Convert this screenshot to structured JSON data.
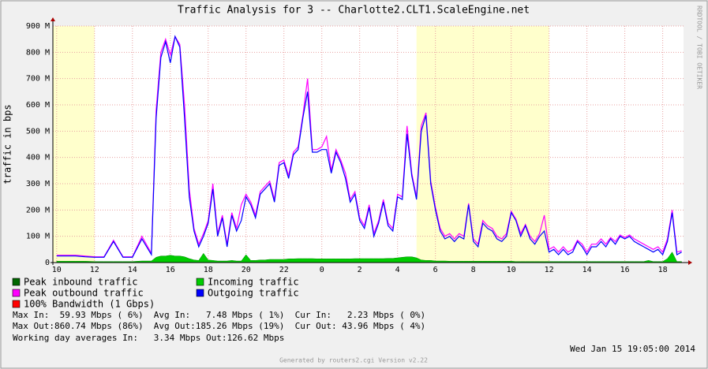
{
  "chart_data": {
    "type": "line",
    "title": "Traffic Analysis for 3 -- Charlotte2.CLT1.ScaleEngine.net",
    "y_label": "traffic in bps",
    "side_text": "RRDTOOL / TOBI OETIKER",
    "xlim": [
      9.8,
      43.1
    ],
    "ylim": [
      0,
      900
    ],
    "grid": true,
    "working_hours": [
      [
        9.8,
        12
      ],
      [
        29,
        36
      ]
    ],
    "xticks": [
      10,
      12,
      14,
      16,
      18,
      20,
      22,
      {
        "value": 24,
        "label": "0"
      },
      {
        "value": 26,
        "label": "2"
      },
      {
        "value": 28,
        "label": "4"
      },
      {
        "value": 30,
        "label": "6"
      },
      {
        "value": 32,
        "label": "8"
      },
      {
        "value": 34,
        "label": "10"
      },
      {
        "value": 36,
        "label": "12"
      },
      {
        "value": 38,
        "label": "14"
      },
      {
        "value": 40,
        "label": "16"
      },
      {
        "value": 42,
        "label": "18"
      }
    ],
    "yticks": [
      0,
      {
        "value": 100,
        "label": "100 M"
      },
      {
        "value": 200,
        "label": "200 M"
      },
      {
        "value": 300,
        "label": "300 M"
      },
      {
        "value": 400,
        "label": "400 M"
      },
      {
        "value": 500,
        "label": "500 M"
      },
      {
        "value": 600,
        "label": "600 M"
      },
      {
        "value": 700,
        "label": "700 M"
      },
      {
        "value": 800,
        "label": "800 M"
      },
      {
        "value": 900,
        "label": "900 M"
      }
    ],
    "x": [
      10,
      10.5,
      11,
      11.5,
      12,
      12.5,
      13,
      13.5,
      14,
      14.5,
      15,
      15.25,
      15.5,
      15.75,
      16,
      16.25,
      16.5,
      16.75,
      17,
      17.25,
      17.5,
      17.75,
      18,
      18.25,
      18.5,
      18.75,
      19,
      19.25,
      19.5,
      19.75,
      20,
      20.25,
      20.5,
      20.75,
      21,
      21.25,
      21.5,
      21.75,
      22,
      22.25,
      22.5,
      22.75,
      23,
      23.25,
      23.5,
      23.75,
      24,
      24.25,
      24.5,
      24.75,
      25,
      25.25,
      25.5,
      25.75,
      26,
      26.25,
      26.5,
      26.75,
      27,
      27.25,
      27.5,
      27.75,
      28,
      28.25,
      28.5,
      28.75,
      29,
      29.25,
      29.5,
      29.75,
      30,
      30.25,
      30.5,
      30.75,
      31,
      31.25,
      31.5,
      31.75,
      32,
      32.25,
      32.5,
      32.75,
      33,
      33.25,
      33.5,
      33.75,
      34,
      34.25,
      34.5,
      34.75,
      35,
      35.25,
      35.5,
      35.75,
      36,
      36.25,
      36.5,
      36.75,
      37,
      37.25,
      37.5,
      37.75,
      38,
      38.25,
      38.5,
      38.75,
      39,
      39.25,
      39.5,
      39.75,
      40,
      40.25,
      40.5,
      40.75,
      41,
      41.25,
      41.5,
      41.75,
      42,
      42.25,
      42.5,
      42.75,
      43
    ],
    "series": [
      {
        "name": "Incoming traffic",
        "color": "#00cc00",
        "style": "area",
        "values": [
          5,
          5,
          5,
          5,
          4,
          4,
          4,
          4,
          4,
          6,
          6,
          20,
          25,
          25,
          28,
          25,
          25,
          22,
          15,
          10,
          8,
          35,
          10,
          8,
          6,
          6,
          6,
          8,
          6,
          6,
          30,
          8,
          8,
          10,
          10,
          12,
          12,
          12,
          12,
          14,
          14,
          15,
          15,
          15,
          15,
          14,
          14,
          14,
          14,
          14,
          14,
          14,
          14,
          15,
          15,
          15,
          15,
          15,
          15,
          15,
          16,
          16,
          18,
          20,
          22,
          22,
          18,
          10,
          8,
          8,
          6,
          6,
          6,
          5,
          5,
          5,
          5,
          5,
          5,
          5,
          5,
          5,
          5,
          5,
          5,
          5,
          5,
          4,
          4,
          4,
          4,
          4,
          4,
          4,
          4,
          4,
          4,
          4,
          4,
          4,
          4,
          4,
          4,
          4,
          4,
          4,
          4,
          4,
          4,
          4,
          4,
          4,
          4,
          4,
          4,
          8,
          4,
          4,
          4,
          15,
          40,
          4,
          4
        ]
      },
      {
        "name": "Peak outbound traffic",
        "color": "#ff00ff",
        "style": "line",
        "values": [
          28,
          28,
          28,
          25,
          22,
          22,
          85,
          22,
          22,
          100,
          35,
          580,
          800,
          850,
          790,
          860,
          830,
          600,
          280,
          130,
          70,
          110,
          160,
          300,
          110,
          180,
          70,
          190,
          130,
          220,
          260,
          230,
          180,
          270,
          290,
          310,
          240,
          380,
          390,
          330,
          420,
          440,
          560,
          700,
          430,
          430,
          440,
          480,
          350,
          430,
          390,
          340,
          240,
          270,
          170,
          140,
          220,
          110,
          160,
          240,
          150,
          130,
          260,
          250,
          520,
          340,
          250,
          520,
          570,
          310,
          210,
          130,
          100,
          110,
          90,
          110,
          100,
          225,
          90,
          70,
          160,
          140,
          130,
          100,
          90,
          110,
          195,
          165,
          110,
          145,
          100,
          80,
          110,
          180,
          50,
          60,
          40,
          60,
          40,
          50,
          85,
          70,
          40,
          70,
          70,
          90,
          70,
          95,
          80,
          105,
          95,
          105,
          90,
          80,
          70,
          60,
          50,
          60,
          40,
          90,
          200,
          40,
          45
        ]
      },
      {
        "name": "Outgoing traffic",
        "color": "#0000ff",
        "style": "line",
        "values": [
          25,
          25,
          25,
          22,
          20,
          20,
          80,
          20,
          20,
          90,
          30,
          550,
          780,
          840,
          760,
          860,
          820,
          550,
          250,
          120,
          60,
          100,
          150,
          280,
          100,
          170,
          60,
          180,
          120,
          160,
          250,
          220,
          170,
          260,
          280,
          300,
          230,
          370,
          380,
          320,
          410,
          430,
          550,
          650,
          420,
          420,
          430,
          430,
          340,
          420,
          380,
          320,
          230,
          260,
          160,
          130,
          210,
          100,
          150,
          230,
          140,
          120,
          250,
          240,
          490,
          330,
          240,
          500,
          560,
          300,
          200,
          120,
          90,
          100,
          80,
          100,
          90,
          220,
          80,
          60,
          150,
          130,
          120,
          90,
          80,
          100,
          190,
          160,
          100,
          140,
          90,
          70,
          100,
          120,
          40,
          50,
          30,
          50,
          30,
          40,
          80,
          60,
          30,
          60,
          60,
          80,
          60,
          90,
          70,
          100,
          90,
          100,
          80,
          70,
          60,
          50,
          40,
          50,
          30,
          80,
          190,
          30,
          40
        ]
      }
    ],
    "legend": [
      {
        "name": "Peak inbound traffic",
        "color": "#006600"
      },
      {
        "name": "Incoming traffic",
        "color": "#00cc00"
      },
      {
        "name": "Peak outbound traffic",
        "color": "#ff00ff"
      },
      {
        "name": "Outgoing traffic",
        "color": "#0000ff"
      },
      {
        "name": "100% Bandwidth (1 Gbps)",
        "color": "#ff0000"
      }
    ],
    "stats": [
      "Max In:  59.93 Mbps ( 6%)  Avg In:   7.48 Mbps ( 1%)  Cur In:   2.23 Mbps ( 0%)",
      "Max Out:860.74 Mbps (86%)  Avg Out:185.26 Mbps (19%)  Cur Out: 43.96 Mbps ( 4%)",
      "Working day averages In:   3.34 Mbps Out:126.62 Mbps"
    ],
    "timestamp": "Wed Jan 15 19:05:00 2014",
    "footer": "Generated by routers2.cgi Version v2.22"
  }
}
